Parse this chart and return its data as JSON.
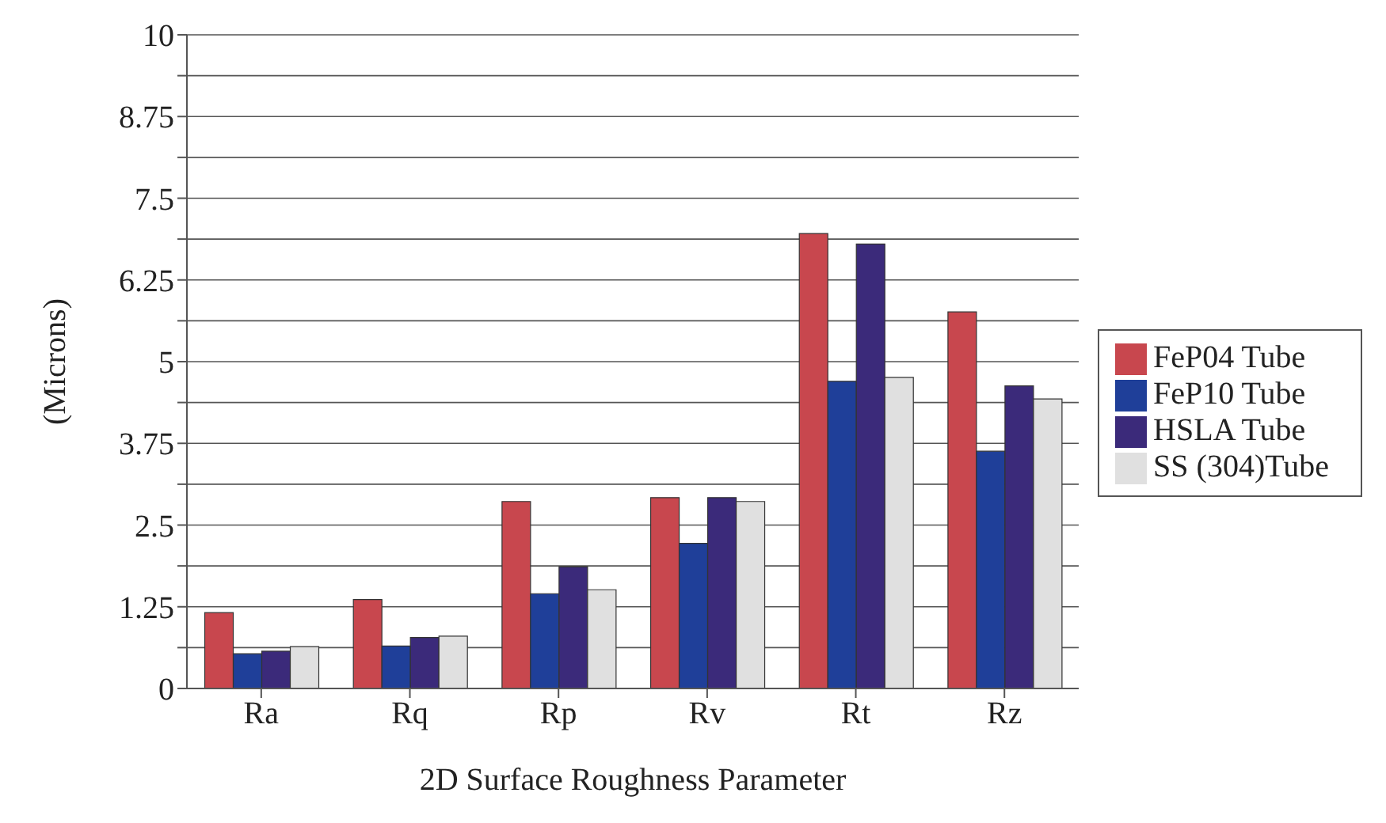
{
  "chart_data": {
    "type": "bar",
    "xlabel": "2D Surface Roughness Parameter",
    "ylabel": "(Microns)",
    "categories": [
      "Ra",
      "Rq",
      "Rp",
      "Rv",
      "Rt",
      "Rz"
    ],
    "series": [
      {
        "name": "FeP04 Tube",
        "color": "#c8474e",
        "values": [
          1.16,
          1.36,
          2.86,
          2.92,
          6.96,
          5.76
        ]
      },
      {
        "name": "FeP10 Tube",
        "color": "#1f3f99",
        "values": [
          0.53,
          0.65,
          1.45,
          2.22,
          4.7,
          3.63
        ]
      },
      {
        "name": "HSLA Tube",
        "color": "#3b2a7a",
        "values": [
          0.57,
          0.78,
          1.86,
          2.92,
          6.8,
          4.63
        ]
      },
      {
        "name": "SS (304)Tube",
        "color": "#e0e0e0",
        "values": [
          0.64,
          0.8,
          1.51,
          2.86,
          4.76,
          4.43
        ]
      }
    ],
    "ylim": [
      0,
      10
    ],
    "yticks": [
      0,
      {
        "value": 0.625,
        "label": null
      },
      1.25,
      {
        "value": 1.875,
        "label": null
      },
      2.5,
      {
        "value": 3.125,
        "label": null
      },
      3.75,
      {
        "value": 4.375,
        "label": null
      },
      5,
      {
        "value": 5.625,
        "label": null
      },
      6.25,
      {
        "value": 6.875,
        "label": null
      },
      7.5,
      {
        "value": 8.125,
        "label": null
      },
      8.75,
      {
        "value": 9.375,
        "label": null
      },
      10
    ],
    "grid": "y",
    "legend": "right"
  }
}
